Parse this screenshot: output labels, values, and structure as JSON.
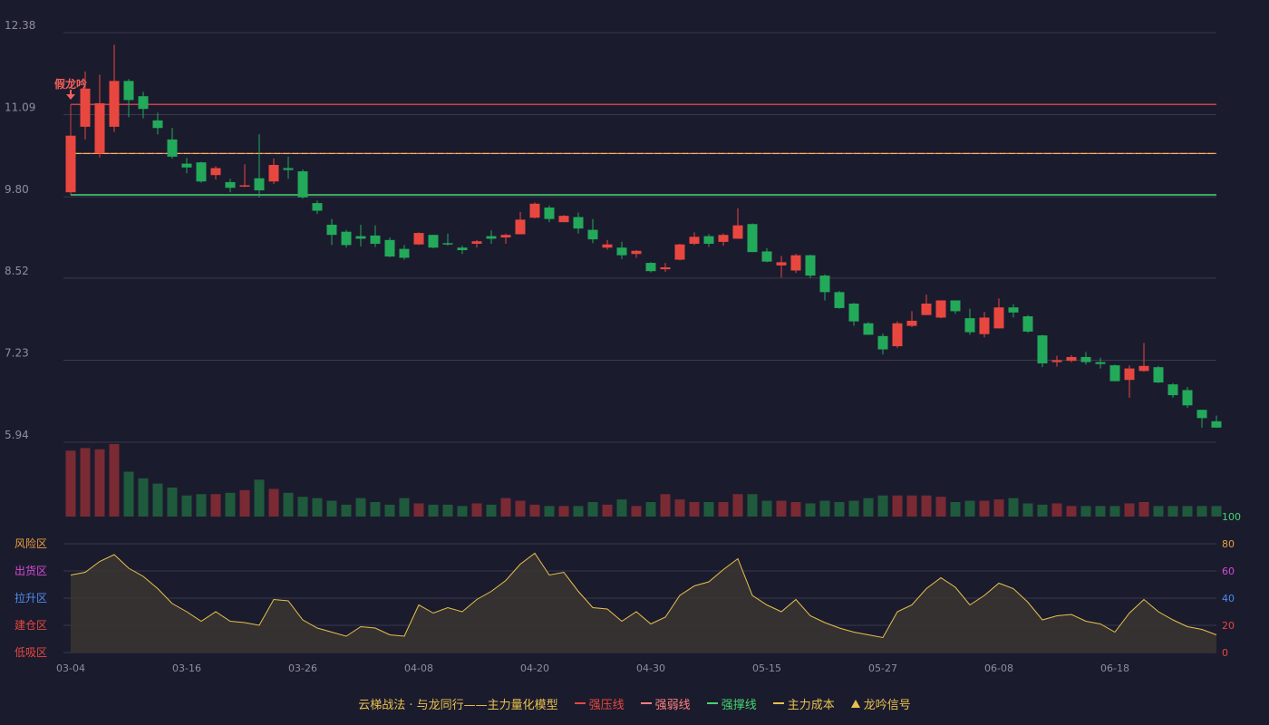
{
  "chart_data": {
    "type": "candlestick",
    "price_axis": {
      "ticks": [
        "12.38",
        "11.09",
        "9.80",
        "8.52",
        "7.23",
        "5.94"
      ],
      "min": 5.94,
      "max": 12.38
    },
    "x_ticks": [
      "03-04",
      "03-16",
      "03-26",
      "04-08",
      "04-20",
      "04-30",
      "05-15",
      "05-27",
      "06-08",
      "06-18"
    ],
    "lines": {
      "strong_pressure": 11.25,
      "weak_line": 10.48,
      "strong_support": 9.83,
      "main_cost": 10.48
    },
    "signal": {
      "label": "假龙吟",
      "index": 0
    },
    "candles": [
      [
        9.87,
        10.76,
        10.73,
        9.87
      ],
      [
        10.9,
        11.5,
        11.77,
        10.7
      ],
      [
        10.48,
        11.27,
        11.72,
        10.42
      ],
      [
        10.9,
        11.62,
        12.19,
        10.82
      ],
      [
        11.62,
        11.32,
        11.65,
        11.05
      ],
      [
        11.38,
        11.18,
        11.45,
        11.03
      ],
      [
        11.0,
        10.88,
        11.12,
        10.78
      ],
      [
        10.7,
        10.43,
        10.88,
        10.4
      ],
      [
        10.32,
        10.26,
        10.41,
        10.17
      ],
      [
        10.34,
        10.04,
        10.35,
        10.02
      ],
      [
        10.14,
        10.25,
        10.28,
        10.07
      ],
      [
        10.03,
        9.94,
        10.08,
        9.87
      ],
      [
        9.98,
        9.98,
        10.31,
        9.95
      ],
      [
        10.09,
        9.9,
        10.78,
        9.79
      ],
      [
        10.04,
        10.3,
        10.4,
        10.0
      ],
      [
        10.25,
        10.22,
        10.43,
        10.08
      ],
      [
        10.2,
        9.79,
        10.23,
        9.77
      ],
      [
        9.7,
        9.58,
        9.74,
        9.53
      ],
      [
        9.36,
        9.2,
        9.45,
        9.04
      ],
      [
        9.25,
        9.04,
        9.28,
        9.0
      ],
      [
        9.18,
        9.14,
        9.36,
        9.02
      ],
      [
        9.19,
        9.06,
        9.35,
        9.01
      ],
      [
        9.12,
        8.86,
        9.16,
        8.85
      ],
      [
        8.98,
        8.84,
        9.04,
        8.81
      ],
      [
        9.05,
        9.23,
        9.24,
        9.04
      ],
      [
        9.2,
        9.0,
        9.2,
        8.99
      ],
      [
        9.07,
        9.06,
        9.22,
        9.03
      ],
      [
        9.0,
        8.96,
        9.03,
        8.9
      ],
      [
        9.06,
        9.1,
        9.12,
        9.0
      ],
      [
        9.18,
        9.14,
        9.27,
        9.06
      ],
      [
        9.16,
        9.2,
        9.22,
        9.06
      ],
      [
        9.21,
        9.44,
        9.56,
        9.21
      ],
      [
        9.47,
        9.69,
        9.71,
        9.46
      ],
      [
        9.63,
        9.45,
        9.66,
        9.4
      ],
      [
        9.4,
        9.5,
        9.51,
        9.4
      ],
      [
        9.48,
        9.3,
        9.55,
        9.22
      ],
      [
        9.28,
        9.13,
        9.45,
        9.07
      ],
      [
        9.0,
        9.05,
        9.12,
        8.97
      ],
      [
        9.0,
        8.88,
        9.09,
        8.82
      ],
      [
        8.9,
        8.95,
        8.96,
        8.84
      ],
      [
        8.76,
        8.63,
        8.77,
        8.61
      ],
      [
        8.66,
        8.69,
        8.76,
        8.62
      ],
      [
        8.81,
        9.05,
        9.06,
        8.8
      ],
      [
        9.06,
        9.17,
        9.24,
        9.04
      ],
      [
        9.18,
        9.06,
        9.21,
        9.01
      ],
      [
        9.09,
        9.2,
        9.22,
        9.03
      ],
      [
        9.14,
        9.35,
        9.62,
        9.14
      ],
      [
        9.37,
        8.93,
        9.38,
        8.93
      ],
      [
        8.94,
        8.78,
        8.99,
        8.77
      ],
      [
        8.72,
        8.77,
        8.87,
        8.53
      ],
      [
        8.64,
        8.88,
        8.9,
        8.6
      ],
      [
        8.88,
        8.56,
        8.89,
        8.52
      ],
      [
        8.56,
        8.3,
        8.58,
        8.17
      ],
      [
        8.3,
        8.05,
        8.32,
        8.04
      ],
      [
        8.12,
        7.84,
        8.13,
        7.77
      ],
      [
        7.81,
        7.63,
        7.83,
        7.63
      ],
      [
        7.61,
        7.4,
        7.65,
        7.32
      ],
      [
        7.45,
        7.81,
        7.84,
        7.42
      ],
      [
        7.77,
        7.85,
        8.0,
        7.75
      ],
      [
        7.94,
        8.12,
        8.26,
        7.94
      ],
      [
        7.9,
        8.17,
        8.17,
        7.89
      ],
      [
        8.17,
        8.0,
        8.17,
        7.96
      ],
      [
        7.89,
        7.67,
        8.04,
        7.63
      ],
      [
        7.64,
        7.9,
        7.99,
        7.59
      ],
      [
        7.73,
        8.06,
        8.2,
        7.73
      ],
      [
        8.06,
        7.98,
        8.11,
        7.9
      ],
      [
        7.92,
        7.68,
        7.94,
        7.66
      ],
      [
        7.62,
        7.18,
        7.63,
        7.12
      ],
      [
        7.2,
        7.23,
        7.3,
        7.13
      ],
      [
        7.22,
        7.28,
        7.31,
        7.2
      ],
      [
        7.28,
        7.2,
        7.36,
        7.16
      ],
      [
        7.2,
        7.17,
        7.27,
        7.1
      ],
      [
        7.15,
        6.9,
        7.16,
        6.9
      ],
      [
        6.92,
        7.1,
        7.15,
        6.64
      ],
      [
        7.06,
        7.14,
        7.5,
        7.05
      ],
      [
        7.12,
        6.88,
        7.14,
        6.87
      ],
      [
        6.85,
        6.68,
        6.87,
        6.64
      ],
      [
        6.76,
        6.52,
        6.81,
        6.48
      ],
      [
        6.45,
        6.32,
        6.45,
        6.17
      ],
      [
        6.27,
        6.17,
        6.36,
        6.17
      ]
    ],
    "volume": [
      50,
      52,
      51,
      55,
      34,
      29,
      25,
      22,
      16,
      17,
      17,
      18,
      20,
      28,
      21,
      18,
      15,
      14,
      12,
      9,
      14,
      11,
      9,
      14,
      10,
      9,
      9,
      8,
      10,
      9,
      14,
      12,
      9,
      8,
      8,
      8,
      11,
      9,
      13,
      8,
      11,
      17,
      13,
      11,
      11,
      11,
      17,
      17,
      12,
      12,
      11,
      10,
      12,
      11,
      12,
      14,
      16,
      16,
      16,
      16,
      15,
      11,
      12,
      12,
      13,
      14,
      10,
      9,
      10,
      8,
      8,
      8,
      8,
      10,
      11,
      8,
      8,
      8,
      8,
      8
    ],
    "indicator": {
      "axis_ticks": [
        "100",
        "80",
        "60",
        "40",
        "20",
        "0"
      ],
      "zones": [
        "风险区",
        "出货区",
        "拉升区",
        "建仓区",
        "低吸区"
      ],
      "values": [
        57,
        59,
        67,
        72,
        62,
        56,
        47,
        36,
        30,
        23,
        30,
        23,
        22,
        20,
        39,
        38,
        24,
        18,
        15,
        12,
        19,
        18,
        13,
        12,
        35,
        29,
        33,
        30,
        39,
        45,
        53,
        65,
        73,
        57,
        59,
        45,
        33,
        32,
        23,
        30,
        21,
        26,
        42,
        49,
        52,
        61,
        69,
        42,
        35,
        30,
        39,
        27,
        22,
        18,
        15,
        13,
        11,
        30,
        35,
        47,
        55,
        48,
        35,
        42,
        51,
        47,
        37,
        24,
        27,
        28,
        23,
        21,
        15,
        29,
        39,
        30,
        24,
        19,
        17,
        13
      ]
    },
    "colors": {
      "up": "#e8473f",
      "down": "#23a95a",
      "grid": "#3a3a4e",
      "axis_text": "#8e8ea0",
      "yellow": "#e8c14c"
    }
  },
  "legend": {
    "title": "云梯战法 · 与龙同行——主力量化模型",
    "items": [
      {
        "label": "强压线",
        "color": "#e8473f",
        "style": "solid"
      },
      {
        "label": "强弱线",
        "color": "#ff8080",
        "style": "dashed"
      },
      {
        "label": "强撑线",
        "color": "#46d46e",
        "style": "solid"
      },
      {
        "label": "主力成本",
        "color": "#e8c14c",
        "style": "dashed"
      },
      {
        "label": "龙吟信号",
        "color": "#e8c14c",
        "style": "triangle"
      }
    ]
  }
}
